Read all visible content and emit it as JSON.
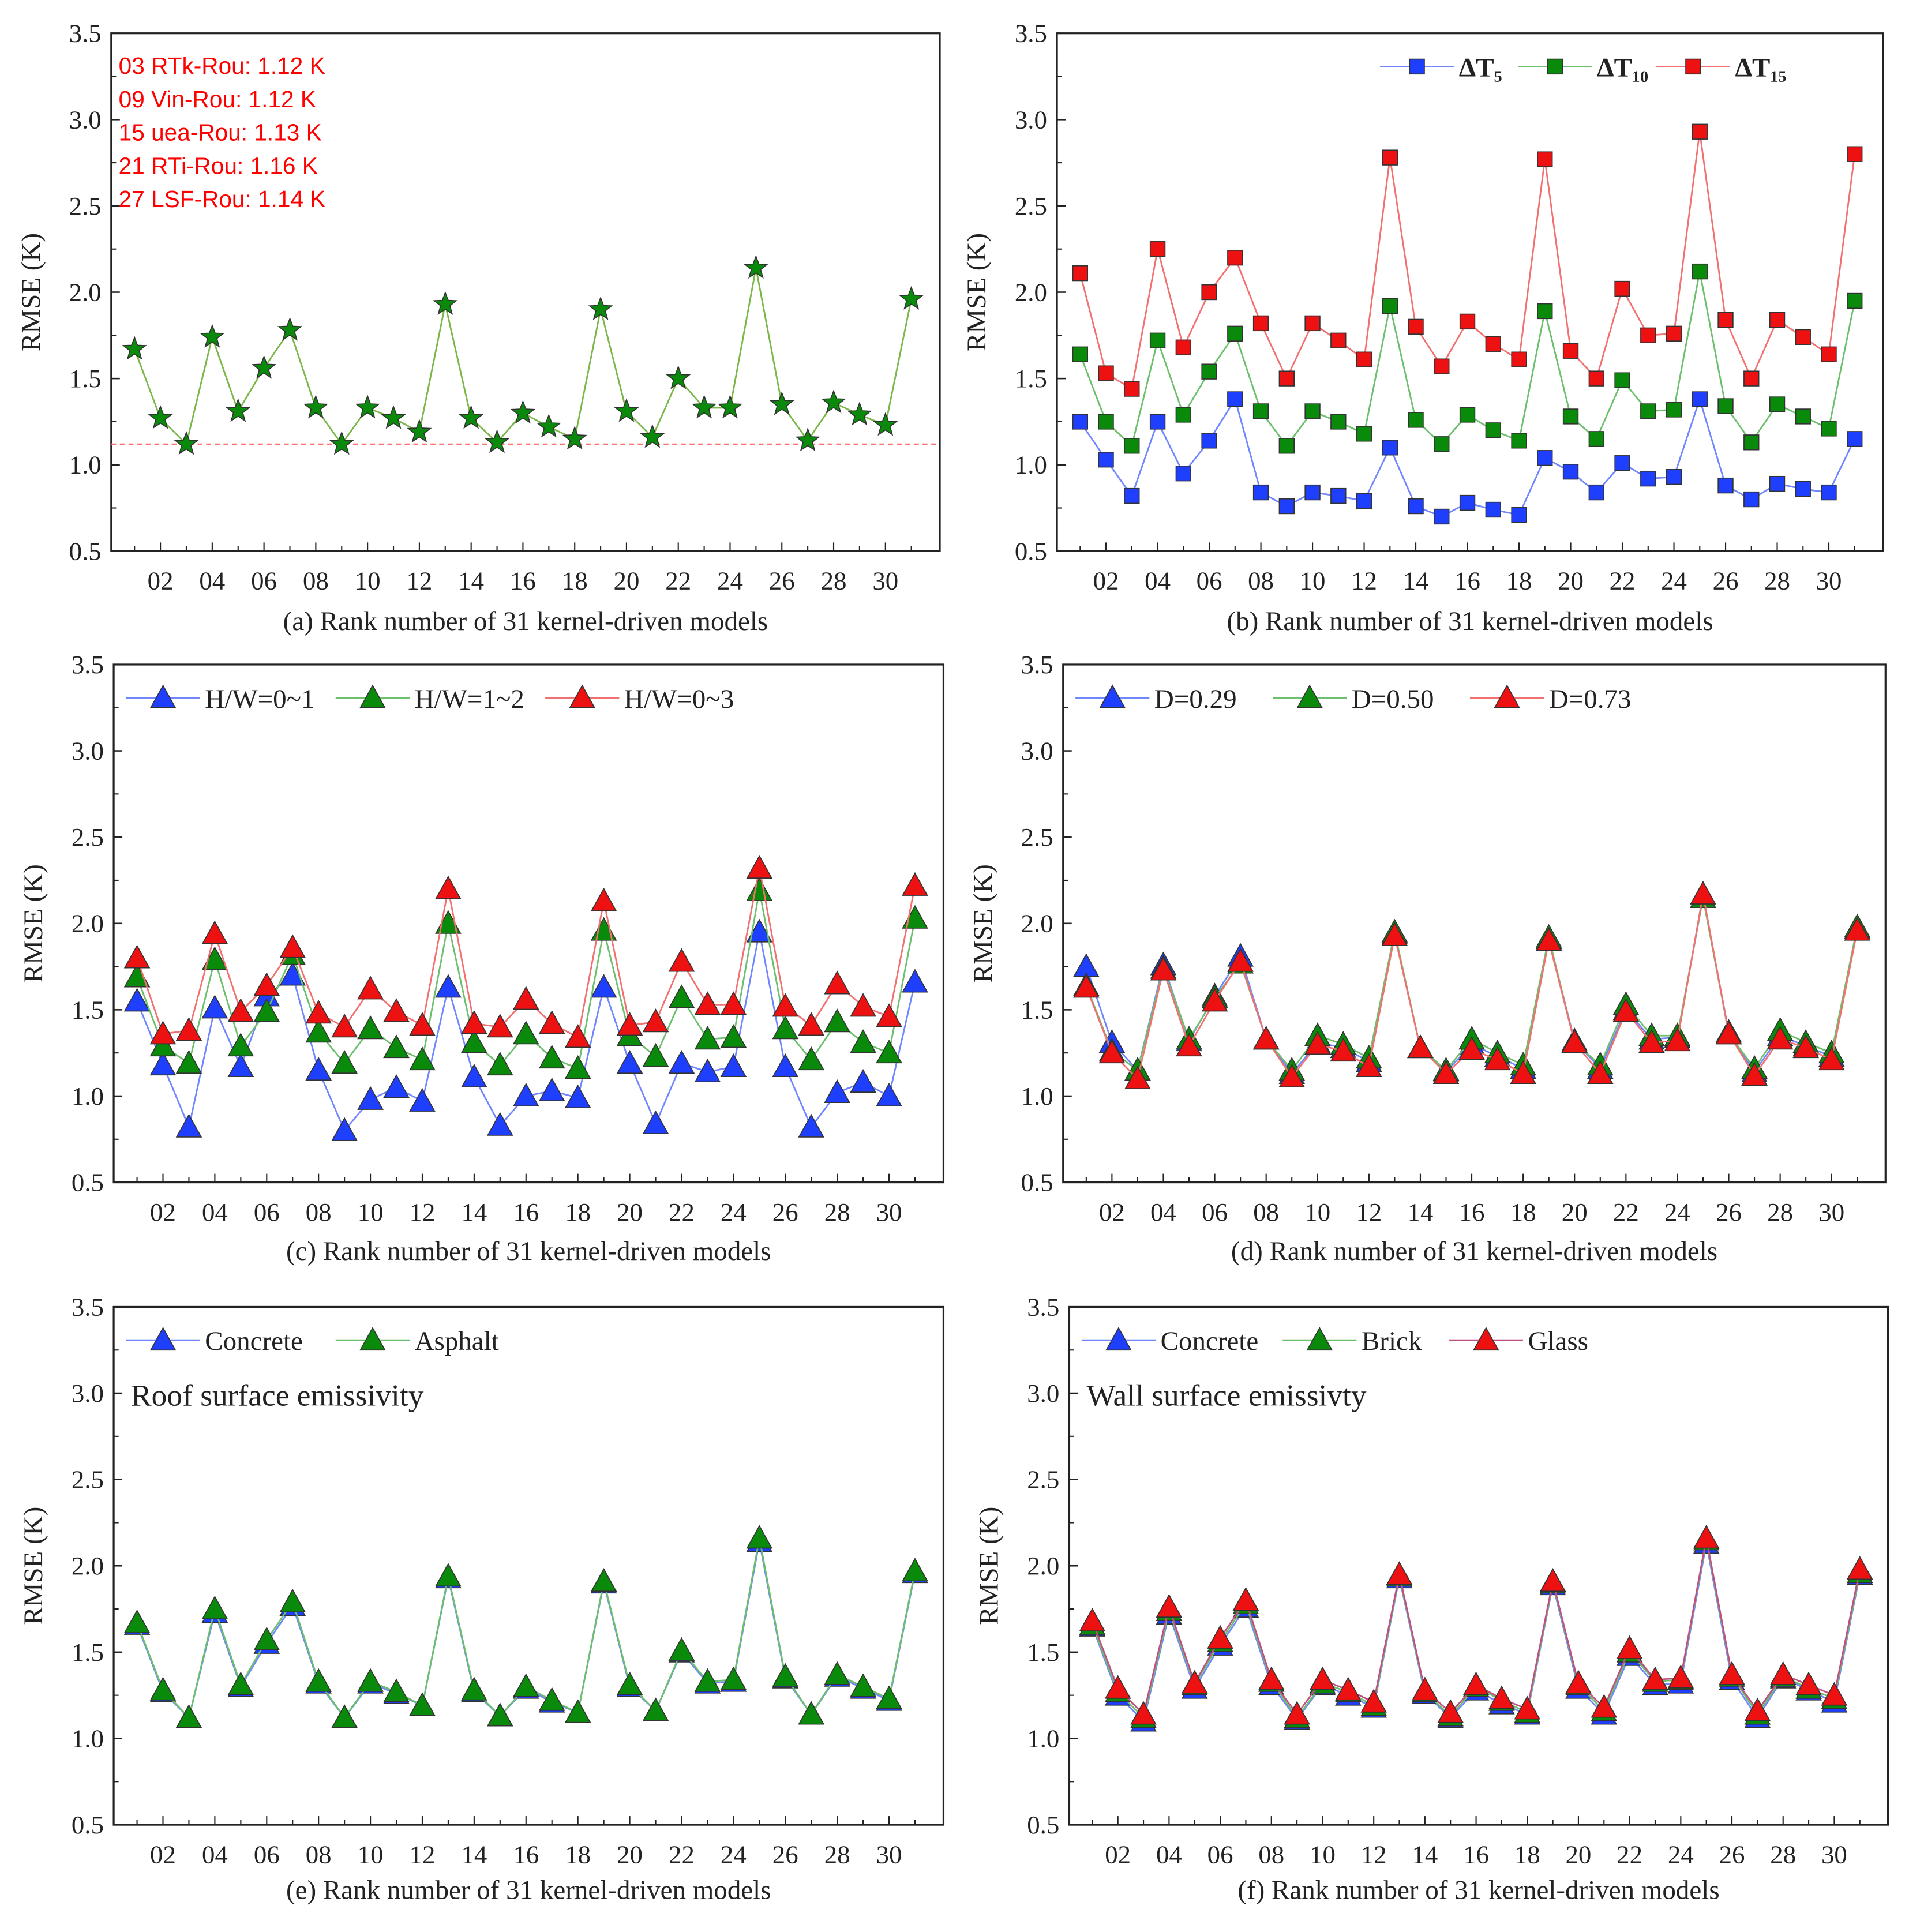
{
  "chart_data": [
    {
      "type": "line",
      "panel": "a",
      "caption": "(a) Rank number of 31 kernel-driven models",
      "ylabel": "RMSE (K)",
      "xlabel": "(a) Rank number of 31 kernel-driven models",
      "ylim": [
        0.5,
        3.5
      ],
      "yticks": [
        "0.5",
        "1.0",
        "1.5",
        "2.0",
        "2.5",
        "3.0",
        "3.5"
      ],
      "xticklabels": [
        "02",
        "04",
        "06",
        "08",
        "10",
        "12",
        "14",
        "16",
        "18",
        "20",
        "22",
        "24",
        "26",
        "28",
        "30"
      ],
      "x": [
        1,
        2,
        3,
        4,
        5,
        6,
        7,
        8,
        9,
        10,
        11,
        12,
        13,
        14,
        15,
        16,
        17,
        18,
        19,
        20,
        21,
        22,
        23,
        24,
        25,
        26,
        27,
        28,
        29,
        30,
        31
      ],
      "legend": "none",
      "reference_line": {
        "value": 1.12,
        "color": "#ff6060",
        "style": "dashed"
      },
      "annotations": [
        "03 RTk-Rou: 1.12 K",
        "09 Vin-Rou: 1.12 K",
        "15 uea-Rou: 1.13 K",
        "21 RTi-Rou: 1.16 K",
        "27 LSF-Rou: 1.14 K"
      ],
      "series": [
        {
          "name": "RMSE",
          "marker": "star",
          "color": "#0a8a0a",
          "line_color": "#7ab648",
          "values": [
            1.67,
            1.27,
            1.12,
            1.74,
            1.31,
            1.56,
            1.78,
            1.33,
            1.12,
            1.33,
            1.27,
            1.19,
            1.93,
            1.27,
            1.13,
            1.3,
            1.22,
            1.15,
            1.9,
            1.31,
            1.16,
            1.5,
            1.33,
            1.33,
            2.14,
            1.35,
            1.14,
            1.36,
            1.29,
            1.23,
            1.96
          ]
        }
      ]
    },
    {
      "type": "line",
      "panel": "b",
      "caption": "(b) Rank number of 31 kernel-driven models",
      "ylabel": "RMSE (K)",
      "ylim": [
        0.5,
        3.5
      ],
      "yticks": [
        "0.5",
        "1.0",
        "1.5",
        "2.0",
        "2.5",
        "3.0",
        "3.5"
      ],
      "xticklabels": [
        "02",
        "04",
        "06",
        "08",
        "10",
        "12",
        "14",
        "16",
        "18",
        "20",
        "22",
        "24",
        "26",
        "28",
        "30"
      ],
      "x": [
        1,
        2,
        3,
        4,
        5,
        6,
        7,
        8,
        9,
        10,
        11,
        12,
        13,
        14,
        15,
        16,
        17,
        18,
        19,
        20,
        21,
        22,
        23,
        24,
        25,
        26,
        27,
        28,
        29,
        30,
        31
      ],
      "legend": "top-right",
      "series": [
        {
          "name": "ΔT₅",
          "marker": "square",
          "color": "#1f3fff",
          "line_color": "#6f86ff",
          "values": [
            1.25,
            1.03,
            0.82,
            1.25,
            0.95,
            1.14,
            1.38,
            0.84,
            0.76,
            0.84,
            0.82,
            0.79,
            1.1,
            0.76,
            0.7,
            0.78,
            0.74,
            0.71,
            1.04,
            0.96,
            0.84,
            1.01,
            0.92,
            0.93,
            1.38,
            0.88,
            0.8,
            0.89,
            0.86,
            0.84,
            1.15
          ]
        },
        {
          "name": "ΔT₁₀",
          "marker": "square",
          "color": "#0a8a0a",
          "line_color": "#6cbf6c",
          "values": [
            1.64,
            1.25,
            1.11,
            1.72,
            1.29,
            1.54,
            1.76,
            1.31,
            1.11,
            1.31,
            1.25,
            1.18,
            1.92,
            1.26,
            1.12,
            1.29,
            1.2,
            1.14,
            1.89,
            1.28,
            1.15,
            1.49,
            1.31,
            1.32,
            2.12,
            1.34,
            1.13,
            1.35,
            1.28,
            1.21,
            1.95
          ]
        },
        {
          "name": "ΔT₁₅",
          "marker": "square",
          "color": "#ee1111",
          "line_color": "#f27070",
          "values": [
            2.11,
            1.53,
            1.44,
            2.25,
            1.68,
            2.0,
            2.2,
            1.82,
            1.5,
            1.82,
            1.72,
            1.61,
            2.78,
            1.8,
            1.57,
            1.83,
            1.7,
            1.61,
            2.77,
            1.66,
            1.5,
            2.02,
            1.75,
            1.76,
            2.93,
            1.84,
            1.5,
            1.84,
            1.74,
            1.64,
            2.8
          ]
        }
      ]
    },
    {
      "type": "line",
      "panel": "c",
      "caption": "(c) Rank number of 31 kernel-driven models",
      "ylabel": "RMSE (K)",
      "ylim": [
        0.5,
        3.5
      ],
      "yticks": [
        "0.5",
        "1.0",
        "1.5",
        "2.0",
        "2.5",
        "3.0",
        "3.5"
      ],
      "xticklabels": [
        "02",
        "04",
        "06",
        "08",
        "10",
        "12",
        "14",
        "16",
        "18",
        "20",
        "22",
        "24",
        "26",
        "28",
        "30"
      ],
      "x": [
        1,
        2,
        3,
        4,
        5,
        6,
        7,
        8,
        9,
        10,
        11,
        12,
        13,
        14,
        15,
        16,
        17,
        18,
        19,
        20,
        21,
        22,
        23,
        24,
        25,
        26,
        27,
        28,
        29,
        30,
        31
      ],
      "legend": "top-left",
      "series": [
        {
          "name": "H/W=0~1",
          "marker": "triangle",
          "color": "#1f3fff",
          "line_color": "#6f86ff",
          "values": [
            1.55,
            1.18,
            0.82,
            1.51,
            1.17,
            1.58,
            1.7,
            1.15,
            0.8,
            0.98,
            1.05,
            0.97,
            1.63,
            1.11,
            0.83,
            1.0,
            1.03,
            0.99,
            1.63,
            1.19,
            0.84,
            1.19,
            1.14,
            1.17,
            1.95,
            1.17,
            0.82,
            1.02,
            1.08,
            1.0,
            1.66
          ]
        },
        {
          "name": "H/W=1~2",
          "marker": "triangle",
          "color": "#0a8a0a",
          "line_color": "#6cbf6c",
          "values": [
            1.69,
            1.29,
            1.19,
            1.79,
            1.29,
            1.49,
            1.82,
            1.37,
            1.19,
            1.39,
            1.28,
            1.21,
            2.0,
            1.31,
            1.18,
            1.36,
            1.22,
            1.16,
            1.96,
            1.35,
            1.23,
            1.57,
            1.33,
            1.34,
            2.19,
            1.39,
            1.21,
            1.43,
            1.31,
            1.25,
            2.03
          ]
        },
        {
          "name": "H/W=0~3",
          "marker": "triangle",
          "color": "#ee1111",
          "line_color": "#f27070",
          "values": [
            1.8,
            1.36,
            1.38,
            1.94,
            1.49,
            1.64,
            1.86,
            1.48,
            1.4,
            1.62,
            1.49,
            1.41,
            2.2,
            1.42,
            1.4,
            1.56,
            1.42,
            1.34,
            2.13,
            1.41,
            1.43,
            1.78,
            1.53,
            1.53,
            2.32,
            1.52,
            1.41,
            1.65,
            1.52,
            1.46,
            2.22
          ]
        }
      ]
    },
    {
      "type": "line",
      "panel": "d",
      "caption": "(d) Rank number of 31 kernel-driven models",
      "ylabel": "RMSE (K)",
      "ylim": [
        0.5,
        3.5
      ],
      "yticks": [
        "0.5",
        "1.0",
        "1.5",
        "2.0",
        "2.5",
        "3.0",
        "3.5"
      ],
      "xticklabels": [
        "02",
        "04",
        "06",
        "08",
        "10",
        "12",
        "14",
        "16",
        "18",
        "20",
        "22",
        "24",
        "26",
        "28",
        "30"
      ],
      "x": [
        1,
        2,
        3,
        4,
        5,
        6,
        7,
        8,
        9,
        10,
        11,
        12,
        13,
        14,
        15,
        16,
        17,
        18,
        19,
        20,
        21,
        22,
        23,
        24,
        25,
        26,
        27,
        28,
        29,
        30,
        31
      ],
      "legend": "top-left",
      "series": [
        {
          "name": "D=0.29",
          "marker": "triangle",
          "color": "#1f3fff",
          "line_color": "#6f86ff",
          "values": [
            1.75,
            1.31,
            1.15,
            1.76,
            1.32,
            1.58,
            1.81,
            1.33,
            1.13,
            1.31,
            1.28,
            1.2,
            1.94,
            1.28,
            1.14,
            1.3,
            1.23,
            1.16,
            1.91,
            1.32,
            1.16,
            1.5,
            1.33,
            1.34,
            2.15,
            1.37,
            1.14,
            1.35,
            1.29,
            1.23,
            1.97
          ]
        },
        {
          "name": "D=0.50",
          "marker": "triangle",
          "color": "#0a8a0a",
          "line_color": "#6cbf6c",
          "values": [
            1.64,
            1.26,
            1.15,
            1.74,
            1.33,
            1.57,
            1.77,
            1.33,
            1.15,
            1.35,
            1.3,
            1.22,
            1.95,
            1.28,
            1.15,
            1.33,
            1.25,
            1.18,
            1.92,
            1.31,
            1.18,
            1.53,
            1.35,
            1.35,
            2.15,
            1.36,
            1.16,
            1.38,
            1.31,
            1.25,
            1.98
          ]
        },
        {
          "name": "D=0.73",
          "marker": "triangle",
          "color": "#ee1111",
          "line_color": "#f27070",
          "values": [
            1.63,
            1.25,
            1.1,
            1.73,
            1.29,
            1.55,
            1.78,
            1.33,
            1.11,
            1.3,
            1.26,
            1.17,
            1.93,
            1.28,
            1.13,
            1.27,
            1.21,
            1.13,
            1.9,
            1.31,
            1.13,
            1.49,
            1.31,
            1.32,
            2.17,
            1.36,
            1.12,
            1.33,
            1.28,
            1.21,
            1.96
          ]
        }
      ]
    },
    {
      "type": "line",
      "panel": "e",
      "caption": "(e) Rank number of 31 kernel-driven models",
      "ylabel": "RMSE (K)",
      "ylim": [
        0.5,
        3.5
      ],
      "yticks": [
        "0.5",
        "1.0",
        "1.5",
        "2.0",
        "2.5",
        "3.0",
        "3.5"
      ],
      "xticklabels": [
        "02",
        "04",
        "06",
        "08",
        "10",
        "12",
        "14",
        "16",
        "18",
        "20",
        "22",
        "24",
        "26",
        "28",
        "30"
      ],
      "x": [
        1,
        2,
        3,
        4,
        5,
        6,
        7,
        8,
        9,
        10,
        11,
        12,
        13,
        14,
        15,
        16,
        17,
        18,
        19,
        20,
        21,
        22,
        23,
        24,
        25,
        26,
        27,
        28,
        29,
        30,
        31
      ],
      "legend": "top-left",
      "note": "Roof surface emissivity",
      "series": [
        {
          "name": "Concrete",
          "marker": "triangle",
          "color": "#1f3fff",
          "line_color": "#6f86ff",
          "values": [
            1.66,
            1.27,
            1.12,
            1.73,
            1.3,
            1.55,
            1.77,
            1.32,
            1.12,
            1.32,
            1.26,
            1.19,
            1.93,
            1.27,
            1.13,
            1.29,
            1.21,
            1.15,
            1.9,
            1.3,
            1.16,
            1.5,
            1.32,
            1.33,
            2.14,
            1.35,
            1.14,
            1.36,
            1.29,
            1.22,
            1.96
          ]
        },
        {
          "name": "Asphalt",
          "marker": "triangle",
          "color": "#0a8a0a",
          "line_color": "#6cbf6c",
          "values": [
            1.67,
            1.28,
            1.12,
            1.75,
            1.31,
            1.57,
            1.79,
            1.33,
            1.12,
            1.33,
            1.27,
            1.19,
            1.94,
            1.28,
            1.13,
            1.3,
            1.22,
            1.15,
            1.91,
            1.31,
            1.16,
            1.51,
            1.33,
            1.34,
            2.16,
            1.36,
            1.14,
            1.37,
            1.3,
            1.23,
            1.97
          ]
        }
      ]
    },
    {
      "type": "line",
      "panel": "f",
      "caption": "(f) Rank number of 31 kernel-driven models",
      "ylabel": "RMSE (K)",
      "ylim": [
        0.5,
        3.5
      ],
      "yticks": [
        "0.5",
        "1.0",
        "1.5",
        "2.0",
        "2.5",
        "3.0",
        "3.5"
      ],
      "xticklabels": [
        "02",
        "04",
        "06",
        "08",
        "10",
        "12",
        "14",
        "16",
        "18",
        "20",
        "22",
        "24",
        "26",
        "28",
        "30"
      ],
      "x": [
        1,
        2,
        3,
        4,
        5,
        6,
        7,
        8,
        9,
        10,
        11,
        12,
        13,
        14,
        15,
        16,
        17,
        18,
        19,
        20,
        21,
        22,
        23,
        24,
        25,
        26,
        27,
        28,
        29,
        30,
        31
      ],
      "legend": "top-left",
      "note": "Wall surface emissivty",
      "series": [
        {
          "name": "Concrete",
          "marker": "triangle",
          "color": "#1f3fff",
          "line_color": "#6f86ff",
          "values": [
            1.65,
            1.25,
            1.1,
            1.72,
            1.29,
            1.54,
            1.76,
            1.31,
            1.11,
            1.31,
            1.25,
            1.18,
            1.93,
            1.26,
            1.12,
            1.28,
            1.2,
            1.14,
            1.89,
            1.29,
            1.14,
            1.48,
            1.31,
            1.32,
            2.13,
            1.34,
            1.12,
            1.35,
            1.28,
            1.21,
            1.95
          ]
        },
        {
          "name": "Brick",
          "marker": "triangle",
          "color": "#0a8a0a",
          "line_color": "#6cbf6c",
          "values": [
            1.66,
            1.27,
            1.12,
            1.74,
            1.31,
            1.56,
            1.78,
            1.33,
            1.12,
            1.32,
            1.27,
            1.19,
            1.94,
            1.27,
            1.13,
            1.3,
            1.22,
            1.15,
            1.9,
            1.31,
            1.16,
            1.5,
            1.33,
            1.34,
            2.15,
            1.36,
            1.14,
            1.36,
            1.29,
            1.23,
            1.96
          ]
        },
        {
          "name": "Glass",
          "marker": "triangle",
          "color": "#ee1111",
          "line_color": "#c05080",
          "values": [
            1.68,
            1.29,
            1.14,
            1.76,
            1.32,
            1.58,
            1.8,
            1.34,
            1.14,
            1.34,
            1.28,
            1.21,
            1.95,
            1.28,
            1.15,
            1.31,
            1.23,
            1.17,
            1.91,
            1.32,
            1.18,
            1.52,
            1.34,
            1.35,
            2.16,
            1.37,
            1.16,
            1.37,
            1.31,
            1.25,
            1.98
          ]
        }
      ]
    }
  ]
}
